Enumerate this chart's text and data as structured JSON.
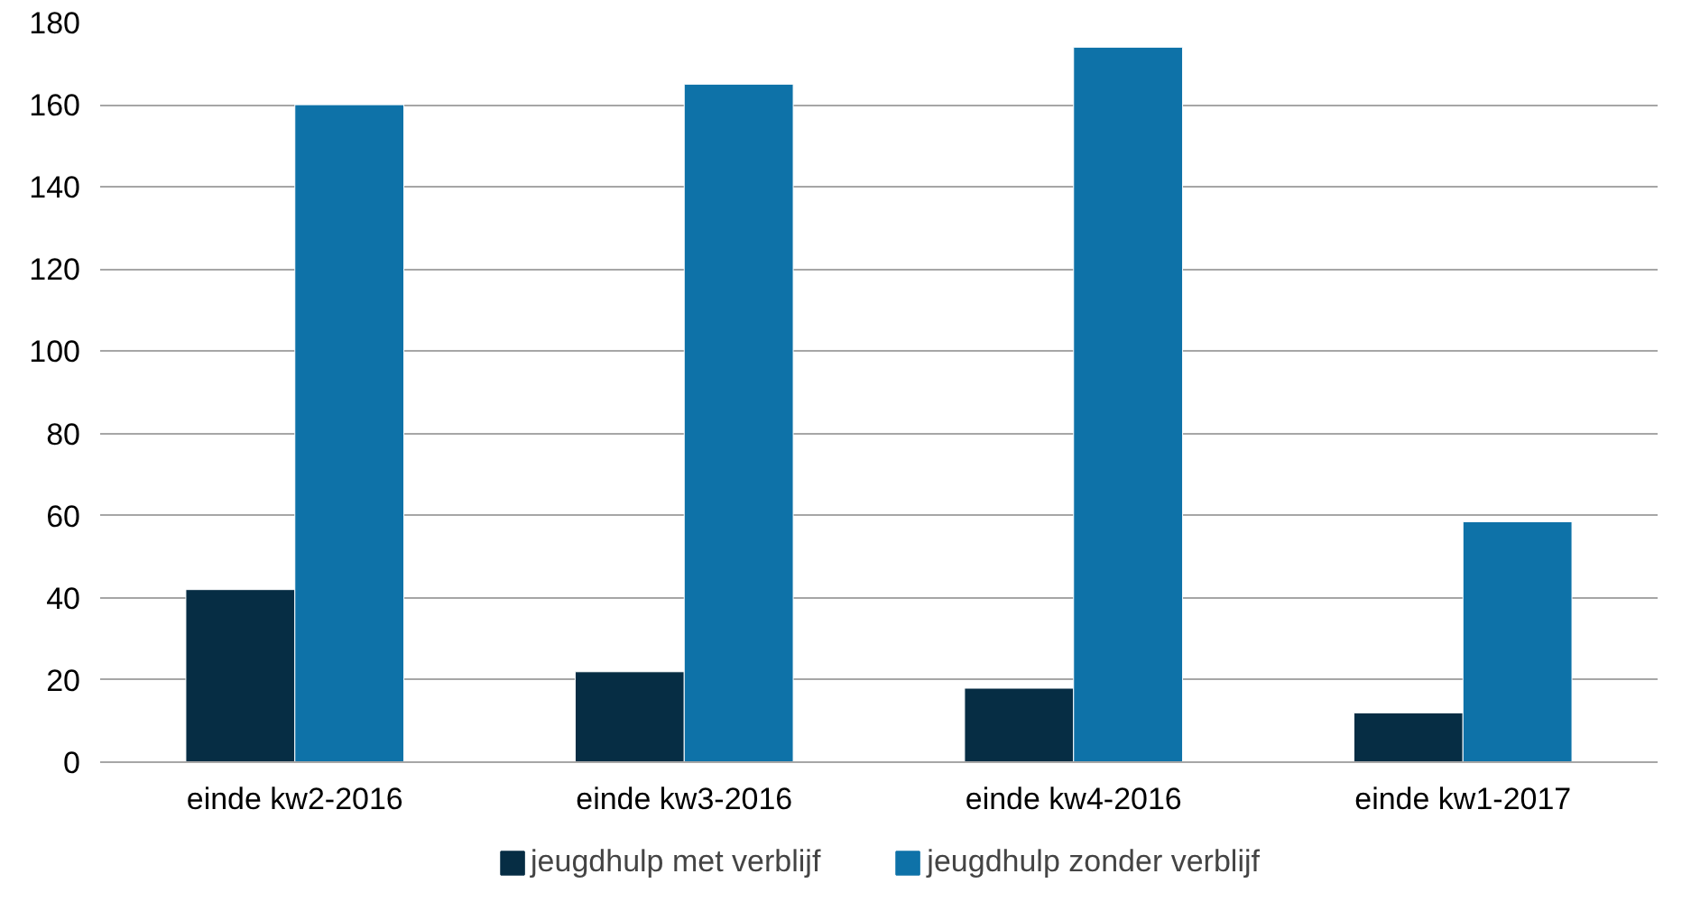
{
  "chart_data": {
    "type": "bar",
    "categories": [
      "einde kw2-2016",
      "einde kw3-2016",
      "einde kw4-2016",
      "einde kw1-2017"
    ],
    "series": [
      {
        "name": "jeugdhulp met verblijf",
        "color": "#062d44",
        "values": [
          42,
          22,
          18,
          12
        ]
      },
      {
        "name": "jeugdhulp zonder verblijf",
        "color": "#0e72a8",
        "values": [
          160,
          165,
          174,
          58.5
        ]
      }
    ],
    "ylim": [
      0,
      180
    ],
    "yticks": [
      0,
      20,
      40,
      60,
      80,
      100,
      120,
      140,
      160,
      180
    ],
    "grid": "y",
    "legend": "bottom"
  }
}
